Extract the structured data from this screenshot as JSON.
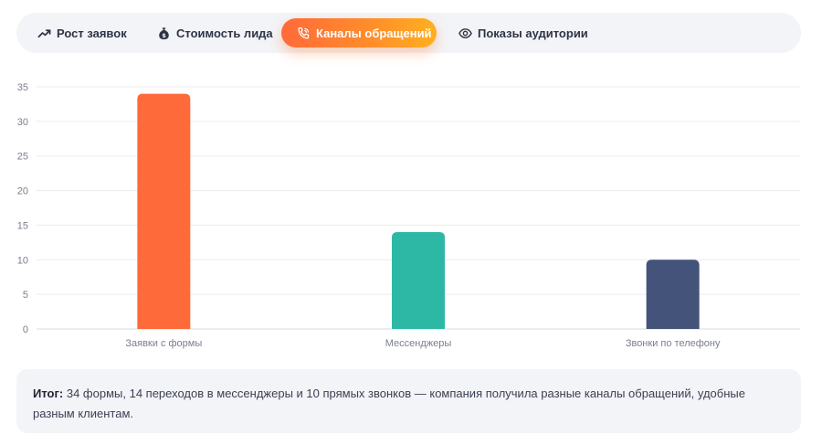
{
  "tabs": [
    {
      "label": "Рост заявок",
      "icon": "trending-up-icon",
      "active": false
    },
    {
      "label": "Стоимость лида",
      "icon": "money-bag-icon",
      "active": false
    },
    {
      "label": "Каналы обращений",
      "icon": "phone-call-icon",
      "active": true
    },
    {
      "label": "Показы аудитории",
      "icon": "eye-icon",
      "active": false
    }
  ],
  "colors": {
    "accent_start": "#ff6a3a",
    "accent_end": "#ffb020",
    "bar_forms": "#ff6a3a",
    "bar_messengers": "#2cb8a5",
    "bar_calls": "#43537a",
    "grid": "#ececf0",
    "tick_text": "#7a7f8e"
  },
  "chart_data": {
    "type": "bar",
    "categories": [
      "Заявки с формы",
      "Мессенджеры",
      "Звонки по телефону"
    ],
    "values": [
      34,
      14,
      10
    ],
    "bar_colors": [
      "#ff6a3a",
      "#2cb8a5",
      "#43537a"
    ],
    "ylim": [
      0,
      35
    ],
    "yticks": [
      0,
      5,
      10,
      15,
      20,
      25,
      30,
      35
    ],
    "grid": true,
    "legend": "none",
    "title": "",
    "xlabel": "",
    "ylabel": ""
  },
  "summary": {
    "label": "Итог:",
    "text": "34 формы, 14 переходов в мессенджеры и 10 прямых звонков — компания получила разные каналы обращений, удобные разным клиентам."
  }
}
